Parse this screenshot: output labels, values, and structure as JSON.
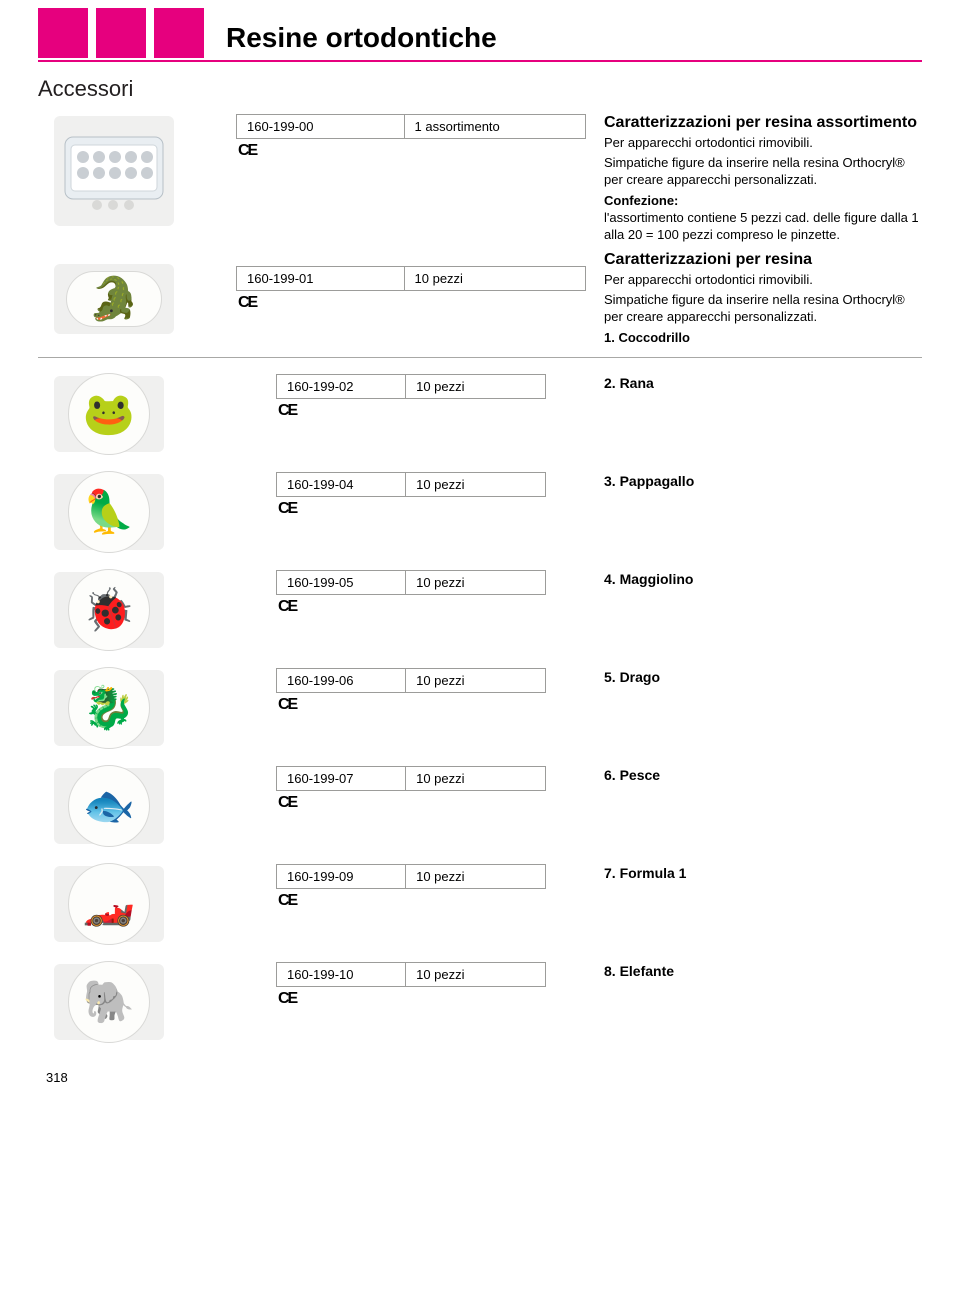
{
  "colors": {
    "magenta": "#e6007e",
    "text": "#1a1a18",
    "rule": "#a8a8a6",
    "cell_border": "#9c9c9a"
  },
  "header": {
    "title": "Resine ortodontiche",
    "subtitle": "Accessori"
  },
  "main": {
    "row1": {
      "code": "160-199-00",
      "qty": "1 assortimento",
      "ce": "CE",
      "desc_title": "Caratterizzazioni per resina assortimento",
      "desc_line1": "Per apparecchi ortodontici rimovibili.",
      "desc_line2": "Simpatiche figure da inserire nella resina Orthocryl® per creare apparecchi personalizzati.",
      "conf_label": "Confezione:",
      "conf_body": "l'assortimento contiene 5 pezzi cad. delle figure dalla 1 alla 20 = 100 pezzi compreso le pinzette."
    },
    "row2": {
      "code": "160-199-01",
      "qty": "10 pezzi",
      "ce": "CE",
      "desc_title": "Caratterizzazioni per resina",
      "desc_line1": "Per apparecchi ortodontici rimovibili.",
      "desc_line2": "Simpatiche figure da inserire nella resina Orthocryl® per creare apparecchi personalizzati.",
      "desc_line3": "1. Coccodrillo",
      "emoji": "🐊"
    }
  },
  "items": [
    {
      "code": "160-199-02",
      "qty": "10 pezzi",
      "name": "2. Rana",
      "emoji": "🐸"
    },
    {
      "code": "160-199-04",
      "qty": "10 pezzi",
      "name": "3. Pappagallo",
      "emoji": "🦜"
    },
    {
      "code": "160-199-05",
      "qty": "10 pezzi",
      "name": "4. Maggiolino",
      "emoji": "🐞"
    },
    {
      "code": "160-199-06",
      "qty": "10 pezzi",
      "name": "5. Drago",
      "emoji": "🐉"
    },
    {
      "code": "160-199-07",
      "qty": "10 pezzi",
      "name": "6. Pesce",
      "emoji": "🐟"
    },
    {
      "code": "160-199-09",
      "qty": "10 pezzi",
      "name": "7. Formula 1",
      "emoji": "🏎️"
    },
    {
      "code": "160-199-10",
      "qty": "10 pezzi",
      "name": "8. Elefante",
      "emoji": "🐘"
    }
  ],
  "ce_mark": "CE",
  "page_number": "318"
}
